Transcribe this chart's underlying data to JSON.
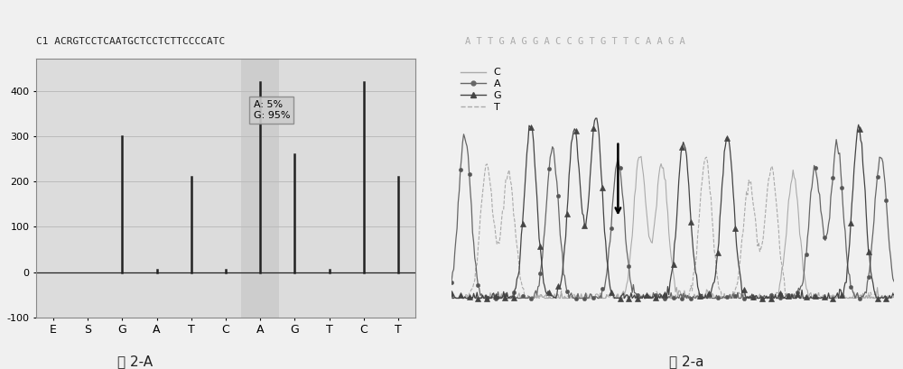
{
  "left_title": "C1 ACRGTCCTCAATGCTCCTCTTCCCCATC",
  "left_xticks": [
    "E",
    "S",
    "G",
    "A",
    "T",
    "C",
    "A",
    "G",
    "T",
    "C",
    "T"
  ],
  "left_ylim": [
    -100,
    470
  ],
  "left_yticks": [
    -100,
    0,
    100,
    200,
    300,
    400
  ],
  "left_bar_x": [
    0,
    1,
    2,
    3,
    4,
    5,
    6,
    7,
    8,
    9,
    10
  ],
  "left_bar_h": [
    0,
    0,
    300,
    5,
    210,
    5,
    420,
    260,
    5,
    420,
    210
  ],
  "left_annotation_text": "A: 5%\nG: 95%",
  "right_title": "A T T G A G G A C C G T G T T C A A G A",
  "right_caption": "图 2-a",
  "left_caption": "图 2-A",
  "legend_labels": [
    "C",
    "A",
    "G",
    "T"
  ],
  "bg_color": "#f0f0f0",
  "plot_bg": "#dcdcdc",
  "bar_color": "#222222",
  "grid_color": "#bbbbbb"
}
